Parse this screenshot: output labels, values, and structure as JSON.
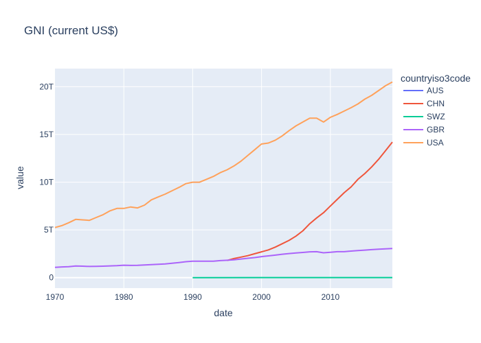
{
  "chart_data": {
    "type": "line",
    "title": "GNI (current US$)",
    "xlabel": "date",
    "ylabel": "value",
    "xlim": [
      1970,
      2019
    ],
    "ylim": [
      -1.1,
      21.9
    ],
    "y_unit_note": "T",
    "x_ticks": [
      1970,
      1980,
      1990,
      2000,
      2010
    ],
    "x_tick_labels": [
      "1970",
      "1980",
      "1990",
      "2000",
      "2010"
    ],
    "y_ticks": [
      0,
      5,
      10,
      15,
      20
    ],
    "y_tick_labels": [
      "0",
      "5T",
      "10T",
      "15T",
      "20T"
    ],
    "grid": true,
    "plot_background": "#e5ecf6",
    "legend": {
      "title": "countryiso3code",
      "placement": "right"
    },
    "series": [
      {
        "name": "AUS",
        "color": "#636efa",
        "x": [],
        "y": []
      },
      {
        "name": "CHN",
        "color": "#ef553b",
        "x": [
          1995,
          1996,
          1997,
          1998,
          1999,
          2000,
          2001,
          2002,
          2003,
          2004,
          2005,
          2006,
          2007,
          2008,
          2009,
          2010,
          2011,
          2012,
          2013,
          2014,
          2015,
          2016,
          2017,
          2018,
          2019
        ],
        "y": [
          1.8,
          2.0,
          2.15,
          2.3,
          2.5,
          2.7,
          2.9,
          3.2,
          3.55,
          3.9,
          4.35,
          4.9,
          5.65,
          6.25,
          6.8,
          7.5,
          8.2,
          8.9,
          9.5,
          10.3,
          10.9,
          11.6,
          12.4,
          13.3,
          14.2
        ]
      },
      {
        "name": "SWZ",
        "color": "#00cc96",
        "x": [
          1990,
          2019
        ],
        "y": [
          0.003,
          0.004
        ]
      },
      {
        "name": "GBR",
        "color": "#ab63fa",
        "x": [
          1970,
          1971,
          1972,
          1973,
          1974,
          1975,
          1976,
          1977,
          1978,
          1979,
          1980,
          1981,
          1982,
          1983,
          1984,
          1985,
          1986,
          1987,
          1988,
          1989,
          1990,
          1991,
          1992,
          1993,
          1994,
          1995,
          1996,
          1997,
          1998,
          1999,
          2000,
          2001,
          2002,
          2003,
          2004,
          2005,
          2006,
          2007,
          2008,
          2009,
          2010,
          2011,
          2012,
          2013,
          2014,
          2015,
          2016,
          2017,
          2018,
          2019
        ],
        "y": [
          1.08,
          1.12,
          1.15,
          1.22,
          1.2,
          1.17,
          1.18,
          1.2,
          1.23,
          1.25,
          1.3,
          1.28,
          1.29,
          1.33,
          1.36,
          1.4,
          1.44,
          1.5,
          1.58,
          1.67,
          1.72,
          1.72,
          1.72,
          1.72,
          1.78,
          1.82,
          1.87,
          1.95,
          2.03,
          2.1,
          2.2,
          2.28,
          2.36,
          2.45,
          2.52,
          2.58,
          2.64,
          2.7,
          2.72,
          2.6,
          2.66,
          2.72,
          2.72,
          2.78,
          2.83,
          2.88,
          2.93,
          2.98,
          3.02,
          3.05
        ]
      },
      {
        "name": "USA",
        "color": "#ffa15a",
        "x": [
          1970,
          1971,
          1972,
          1973,
          1974,
          1975,
          1976,
          1977,
          1978,
          1979,
          1980,
          1981,
          1982,
          1983,
          1984,
          1985,
          1986,
          1987,
          1988,
          1989,
          1990,
          1991,
          1992,
          1993,
          1994,
          1995,
          1996,
          1997,
          1998,
          1999,
          2000,
          2001,
          2002,
          2003,
          2004,
          2005,
          2006,
          2007,
          2008,
          2009,
          2010,
          2011,
          2012,
          2013,
          2014,
          2015,
          2016,
          2017,
          2018,
          2019
        ],
        "y": [
          5.25,
          5.45,
          5.75,
          6.1,
          6.05,
          6.0,
          6.3,
          6.6,
          7.0,
          7.25,
          7.25,
          7.4,
          7.3,
          7.6,
          8.15,
          8.45,
          8.75,
          9.1,
          9.45,
          9.85,
          10.0,
          10.0,
          10.3,
          10.6,
          11.0,
          11.3,
          11.7,
          12.2,
          12.8,
          13.4,
          14.0,
          14.1,
          14.4,
          14.85,
          15.4,
          15.9,
          16.3,
          16.7,
          16.7,
          16.3,
          16.8,
          17.1,
          17.45,
          17.8,
          18.2,
          18.7,
          19.1,
          19.6,
          20.1,
          20.5
        ]
      }
    ]
  }
}
